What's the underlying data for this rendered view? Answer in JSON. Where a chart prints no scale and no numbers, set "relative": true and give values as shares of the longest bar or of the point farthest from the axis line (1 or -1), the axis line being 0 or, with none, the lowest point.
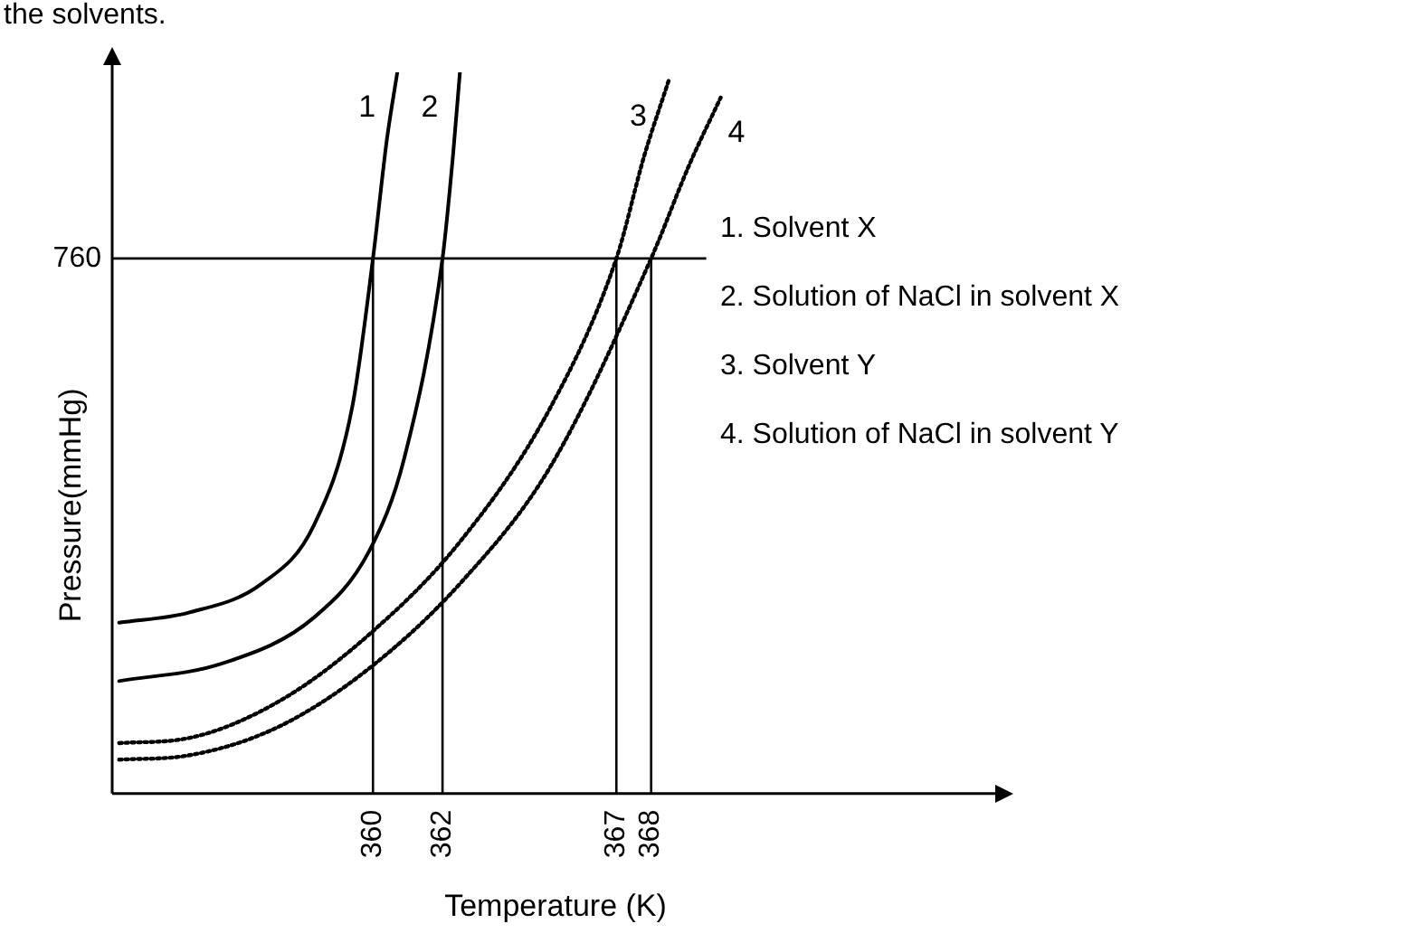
{
  "chart_data": {
    "type": "line",
    "xlabel": "Temperature (K)",
    "ylabel": "Pressure(mmHg)",
    "relative": true,
    "xlim": [
      352.5,
      378
    ],
    "xticks": [
      360,
      362,
      367,
      368
    ],
    "grid": false,
    "legend": false,
    "tick_labels": "x",
    "marker": "none",
    "series": [
      {
        "name": "1",
        "color": "#000000",
        "line_style": "solid",
        "x": [
          352.7,
          354.7,
          356.8,
          358.3,
          359.4,
          360,
          360.4,
          360.7
        ],
        "values": [
          0.237,
          0.251,
          0.291,
          0.372,
          0.535,
          0.742,
          0.907,
          1.0
        ]
      },
      {
        "name": "2",
        "color": "#000000",
        "line_style": "solid",
        "x": [
          352.7,
          355.7,
          358.3,
          359.9,
          360.9,
          362,
          362.3,
          362.5
        ],
        "values": [
          0.156,
          0.181,
          0.244,
          0.337,
          0.465,
          0.742,
          0.884,
          1.0
        ]
      },
      {
        "name": "3",
        "color": "#000000",
        "line_style": "dotted",
        "x": [
          352.7,
          354.7,
          357.3,
          359.9,
          362.5,
          365.1,
          367,
          367.8,
          368.5
        ],
        "values": [
          0.07,
          0.077,
          0.128,
          0.221,
          0.349,
          0.535,
          0.742,
          0.884,
          0.988
        ]
      },
      {
        "name": "4",
        "color": "#000000",
        "line_style": "dotted",
        "x": [
          352.7,
          354.7,
          357.3,
          359.9,
          362.5,
          365.1,
          368,
          369.1,
          370
        ],
        "values": [
          0.047,
          0.053,
          0.093,
          0.174,
          0.291,
          0.453,
          0.742,
          0.872,
          0.965
        ]
      }
    ],
    "ref_lines": [
      {
        "axis": "y",
        "value": 0.742
      },
      {
        "axis": "x",
        "value": 360
      },
      {
        "axis": "x",
        "value": 362
      },
      {
        "axis": "x",
        "value": 367
      },
      {
        "axis": "x",
        "value": 368
      }
    ],
    "annotations": [
      "the solvents.",
      "760",
      "1. Solvent X",
      "2. Solution of NaCl in solvent X",
      "3. Solvent Y",
      "4. Solution of NaCl in solvent Y"
    ]
  }
}
